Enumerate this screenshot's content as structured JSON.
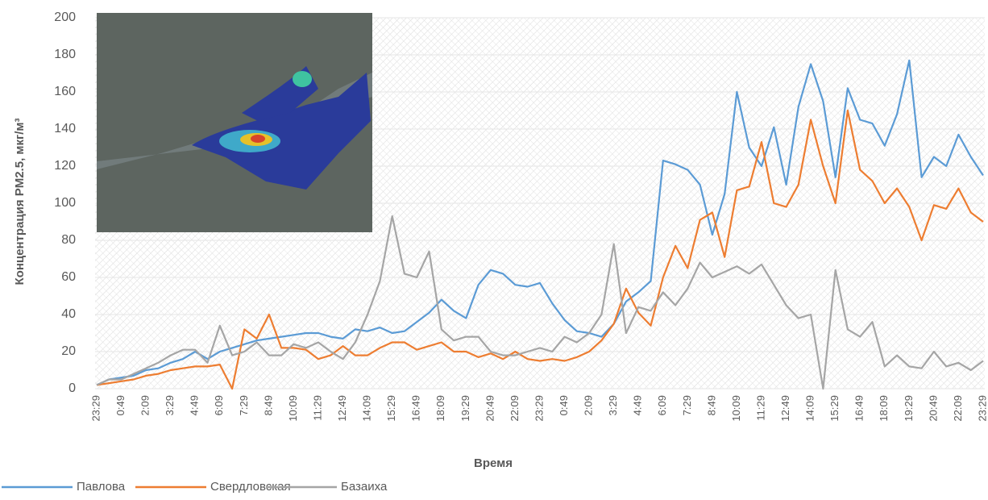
{
  "chart_data": {
    "type": "line",
    "y_label": "Концентрация PM2.5, мкг/м³",
    "x_label": "Время",
    "categories": [
      "23:29",
      null,
      "0:49",
      null,
      "2:09",
      null,
      "3:29",
      null,
      "4:49",
      null,
      "6:09",
      null,
      "7:29",
      null,
      "8:49",
      null,
      "10:09",
      null,
      "11:29",
      null,
      "12:49",
      null,
      "14:09",
      null,
      "15:29",
      null,
      "16:49",
      null,
      "18:09",
      null,
      "19:29",
      null,
      "20:49",
      null,
      "22:09",
      null,
      "23:29",
      null,
      "0:49",
      null,
      "2:09",
      null,
      "3:29",
      null,
      "4:49",
      null,
      "6:09",
      null,
      "7:29",
      null,
      "8:49",
      null,
      "10:09",
      null,
      "11:29",
      null,
      "12:49",
      null,
      "14:09",
      null,
      "15:29",
      null,
      "16:49",
      null,
      "18:09",
      null,
      "19:29",
      null,
      "20:49",
      null,
      "22:09",
      null,
      "23:29"
    ],
    "series": [
      {
        "name": "Павлова",
        "color": "#5b9bd5",
        "values": [
          2,
          5,
          6,
          7,
          10,
          11,
          14,
          16,
          20,
          16,
          20,
          22,
          24,
          26,
          27,
          28,
          29,
          30,
          30,
          28,
          27,
          32,
          31,
          33,
          30,
          31,
          36,
          41,
          48,
          42,
          38,
          56,
          64,
          62,
          56,
          55,
          57,
          46,
          37,
          31,
          30,
          28,
          35,
          47,
          52,
          58,
          123,
          121,
          118,
          110,
          83,
          105,
          160,
          130,
          120,
          141,
          110,
          152,
          175,
          155,
          114,
          162,
          145,
          143,
          131,
          148,
          177,
          114,
          125,
          120,
          137,
          125,
          115
        ]
      },
      {
        "name": "Свердловская",
        "color": "#ed7d31",
        "values": [
          2,
          3,
          4,
          5,
          7,
          8,
          10,
          11,
          12,
          12,
          13,
          0,
          32,
          27,
          40,
          22,
          22,
          21,
          16,
          18,
          23,
          18,
          18,
          22,
          25,
          25,
          21,
          23,
          25,
          20,
          20,
          17,
          19,
          16,
          20,
          16,
          15,
          16,
          15,
          17,
          20,
          26,
          35,
          54,
          41,
          34,
          60,
          77,
          65,
          91,
          95,
          71,
          107,
          109,
          133,
          100,
          98,
          110,
          145,
          120,
          100,
          150,
          118,
          112,
          100,
          108,
          98,
          80,
          99,
          97,
          108,
          95,
          90
        ]
      },
      {
        "name": "Базаиха",
        "color": "#a5a5a5",
        "values": [
          2,
          5,
          5,
          8,
          11,
          14,
          18,
          21,
          21,
          14,
          34,
          18,
          20,
          25,
          18,
          18,
          24,
          22,
          25,
          20,
          16,
          25,
          40,
          58,
          93,
          62,
          60,
          74,
          32,
          26,
          28,
          28,
          20,
          18,
          18,
          20,
          22,
          20,
          28,
          25,
          30,
          40,
          78,
          30,
          44,
          42,
          52,
          45,
          54,
          68,
          60,
          63,
          66,
          62,
          67,
          56,
          45,
          38,
          40,
          0,
          64,
          32,
          28,
          36,
          12,
          18,
          12,
          11,
          20,
          12,
          14,
          10,
          15
        ]
      }
    ],
    "ylim": [
      0,
      200
    ],
    "yticks": [
      0,
      20,
      40,
      60,
      80,
      100,
      120,
      140,
      160,
      180,
      200
    ],
    "grid": true,
    "legend": "bottom-left"
  }
}
